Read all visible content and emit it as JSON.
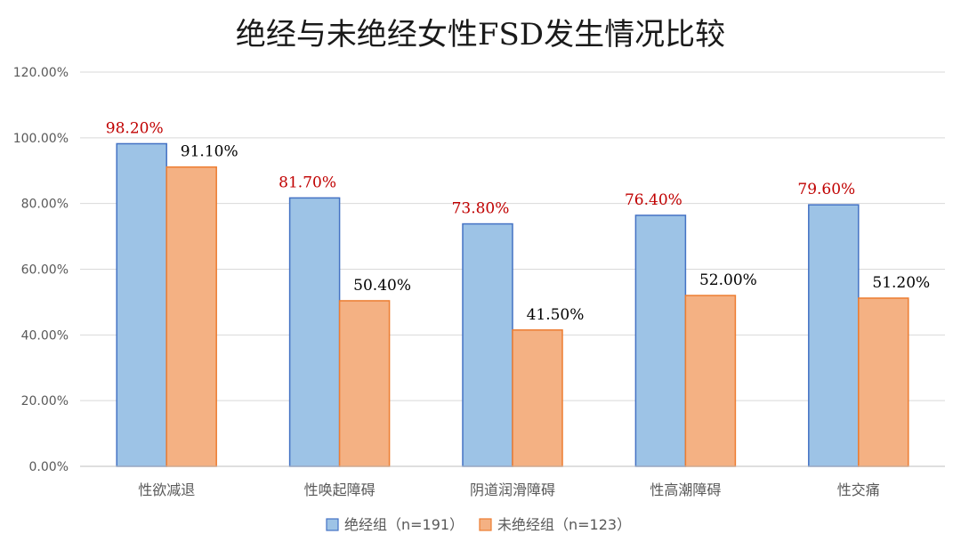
{
  "chart_data": {
    "type": "bar",
    "title": "绝经与未绝经女性FSD发生情况比较",
    "categories": [
      "性欲减退",
      "性唤起障碍",
      "阴道润滑障碍",
      "性高潮障碍",
      "性交痛"
    ],
    "series": [
      {
        "name": "绝经组（n=191）",
        "values": [
          98.2,
          81.7,
          73.8,
          76.4,
          79.6
        ],
        "labels": [
          "98.20%",
          "81.70%",
          "73.80%",
          "76.40%",
          "79.60%"
        ],
        "color": "#9DC3E6",
        "border": "#4472C4",
        "label_color": "#C00000"
      },
      {
        "name": "未绝经组（n=123）",
        "values": [
          91.1,
          50.4,
          41.5,
          52.0,
          51.2
        ],
        "labels": [
          "91.10%",
          "50.40%",
          "41.50%",
          "52.00%",
          "51.20%"
        ],
        "color": "#F4B183",
        "border": "#ED7D31",
        "label_color": "#000000"
      }
    ],
    "ylim": [
      0,
      120
    ],
    "yticks": [
      "0.00%",
      "20.00%",
      "40.00%",
      "60.00%",
      "80.00%",
      "100.00%",
      "120.00%"
    ],
    "grid": true,
    "legend": "bottom"
  }
}
